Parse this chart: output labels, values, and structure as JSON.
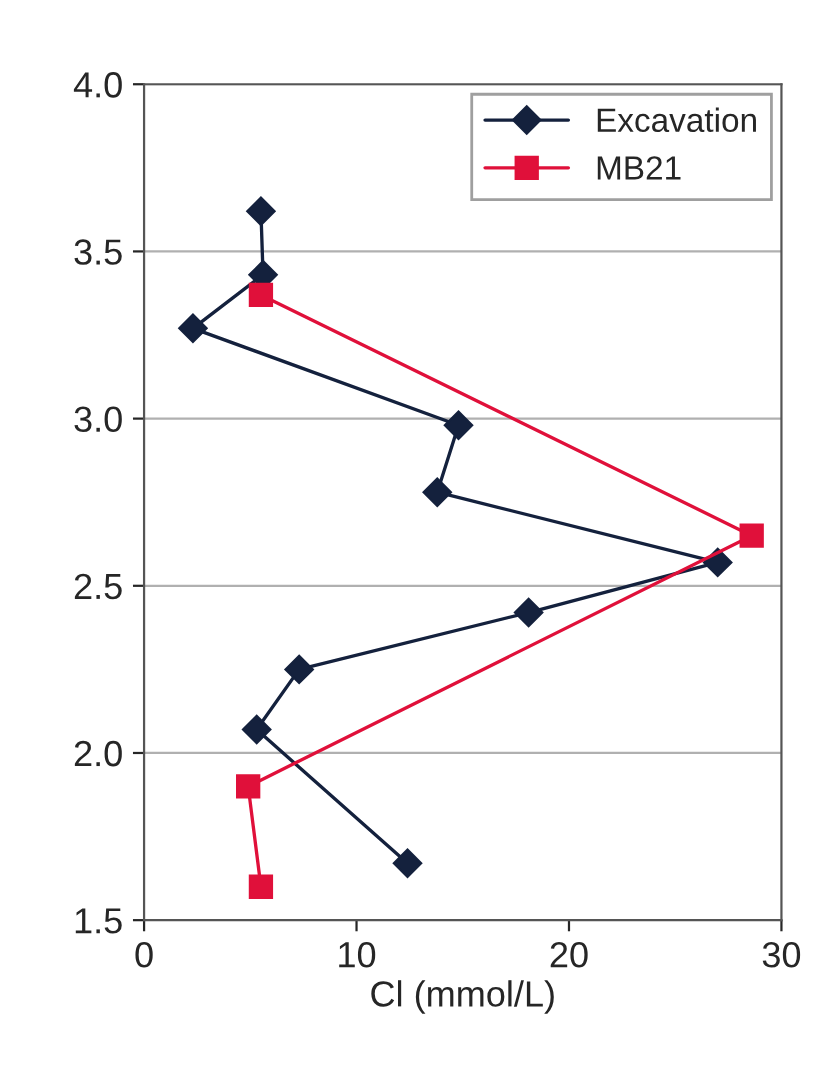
{
  "chart_data": {
    "type": "line",
    "xlabel": "Cl (mmol/L)",
    "series": [
      {
        "name": "Excavation",
        "color": "#14213d",
        "marker": "diamond",
        "x": [
          5.5,
          5.6,
          2.3,
          14.8,
          13.8,
          27.0,
          18.1,
          7.3,
          5.3,
          12.4
        ],
        "values": [
          3.62,
          3.43,
          3.27,
          2.98,
          2.78,
          2.57,
          2.42,
          2.25,
          2.07,
          1.67
        ]
      },
      {
        "name": "MB21",
        "color": "#e0103a",
        "marker": "square",
        "x": [
          5.5,
          28.6,
          4.9,
          5.5
        ],
        "values": [
          3.37,
          2.65,
          1.9,
          1.6
        ]
      }
    ],
    "xlim": [
      0,
      30
    ],
    "xticks": [
      0,
      10,
      20,
      30
    ],
    "ylim": [
      1.5,
      4.0
    ],
    "yticks": [
      {
        "value": 1.5,
        "label": "1.5"
      },
      {
        "value": 2.0,
        "label": "2.0"
      },
      {
        "value": 2.5,
        "label": "2.5"
      },
      {
        "value": 3.0,
        "label": "3.0"
      },
      {
        "value": 3.5,
        "label": "3.5"
      },
      {
        "value": 4.0,
        "label": "4.0"
      }
    ],
    "grid": "y",
    "legend": "top right",
    "line_style": "solid"
  }
}
